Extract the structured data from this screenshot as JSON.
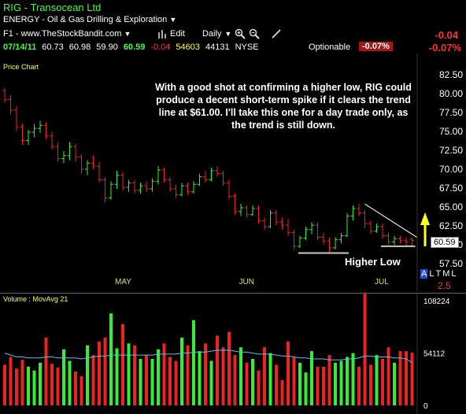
{
  "header": {
    "ticker": "RIG",
    "dash": "-",
    "company": "Transocean Ltd",
    "sector": "ENERGY - Oil & Gas Drilling & Exploration",
    "sector_dropdown": "▼",
    "source": "F1 - www.TheStockBandit.com",
    "edit_label": "Edit",
    "period_label": "Daily",
    "change_top": "-0.04",
    "change_pct_top": "-0.07%"
  },
  "quote": {
    "date": "07/14/11",
    "open": "60.73",
    "high": "60.98",
    "low": "59.90",
    "close": "60.59",
    "change": "-0.04",
    "volume": "54603",
    "avg_volume": "44131",
    "exchange": "NYSE",
    "optionable": "Optionable",
    "change_pct": "-0.07%"
  },
  "price_panel": {
    "label": "Price Chart",
    "annotation": "With a good shot at confirming a higher low, RIG could produce a decent short-term spike if it clears the trend line at $61.00.  I'll take this one for a day trade only, as the trend is still down.",
    "higher_low_label": "Higher Low",
    "last_price_tag": "60.59",
    "side_letters": [
      "A",
      "L",
      "T",
      "M",
      "L"
    ],
    "side_value": "2.5",
    "colors": {
      "up": "#33ee33",
      "down": "#ee2222",
      "arrow": "#ffff20",
      "trendline": "#ffffff",
      "support": "#c8c8c8"
    }
  },
  "volume_panel": {
    "label": "Volume : MovAvg 21",
    "ticks": [
      "108224",
      "54112",
      "0"
    ],
    "colors": {
      "up": "#33ee33",
      "down": "#ee2222",
      "ma": "#4fc6e6"
    }
  },
  "chart_data": [
    {
      "type": "candlestick",
      "title": "RIG - Transocean Ltd",
      "ylabel": "",
      "ylim": [
        56.5,
        83.5
      ],
      "ytick_labels": [
        "82.50",
        "80.00",
        "77.50",
        "75.00",
        "72.50",
        "70.00",
        "67.50",
        "65.00",
        "62.50",
        "60.00",
        "57.50"
      ],
      "xtick_labels": [
        "MAY",
        "JUN",
        "JUL"
      ],
      "x_positions_of_months": {
        "MAY": 20,
        "JUN": 41,
        "JUL": 64
      },
      "last_close": 60.59,
      "trendline_at": 61.0,
      "ohlc": [
        [
          80.4,
          80.8,
          78.8,
          79.2
        ],
        [
          79.2,
          79.8,
          77.2,
          77.8
        ],
        [
          77.8,
          78.4,
          75.0,
          75.6
        ],
        [
          75.6,
          76.0,
          73.2,
          73.8
        ],
        [
          73.8,
          75.2,
          73.2,
          74.9
        ],
        [
          74.9,
          76.0,
          74.2,
          75.4
        ],
        [
          75.4,
          76.4,
          74.8,
          75.8
        ],
        [
          75.8,
          76.2,
          74.0,
          74.4
        ],
        [
          74.4,
          75.0,
          72.6,
          73.0
        ],
        [
          73.0,
          73.6,
          71.0,
          71.4
        ],
        [
          71.4,
          72.4,
          70.8,
          71.8
        ],
        [
          71.8,
          73.6,
          71.2,
          73.0
        ],
        [
          73.0,
          73.4,
          71.0,
          71.6
        ],
        [
          71.6,
          72.0,
          69.4,
          70.0
        ],
        [
          70.0,
          71.2,
          69.2,
          70.8
        ],
        [
          70.8,
          71.8,
          70.0,
          70.4
        ],
        [
          70.4,
          71.0,
          68.2,
          68.6
        ],
        [
          68.6,
          69.0,
          65.6,
          66.2
        ],
        [
          66.2,
          68.4,
          66.0,
          68.0
        ],
        [
          68.0,
          69.8,
          67.4,
          69.2
        ],
        [
          69.2,
          69.6,
          67.2,
          67.6
        ],
        [
          67.6,
          68.6,
          67.0,
          68.2
        ],
        [
          68.2,
          68.6,
          66.8,
          67.2
        ],
        [
          67.2,
          68.2,
          66.8,
          67.8
        ],
        [
          67.8,
          68.4,
          67.0,
          67.4
        ],
        [
          67.4,
          68.8,
          67.0,
          68.4
        ],
        [
          68.4,
          70.4,
          68.0,
          69.9
        ],
        [
          69.9,
          70.2,
          68.2,
          68.6
        ],
        [
          68.6,
          69.0,
          67.0,
          67.4
        ],
        [
          67.4,
          68.0,
          66.2,
          66.6
        ],
        [
          66.6,
          68.2,
          66.4,
          67.8
        ],
        [
          67.8,
          68.2,
          66.6,
          67.0
        ],
        [
          67.0,
          68.4,
          66.8,
          68.0
        ],
        [
          68.0,
          69.4,
          67.8,
          69.0
        ],
        [
          69.0,
          69.8,
          68.2,
          68.6
        ],
        [
          68.6,
          70.2,
          68.4,
          69.8
        ],
        [
          69.8,
          70.4,
          69.0,
          69.4
        ],
        [
          69.4,
          69.8,
          67.8,
          68.2
        ],
        [
          68.2,
          68.6,
          66.0,
          66.4
        ],
        [
          66.4,
          66.8,
          64.0,
          64.4
        ],
        [
          64.4,
          65.4,
          63.8,
          64.9
        ],
        [
          64.9,
          65.2,
          63.6,
          64.0
        ],
        [
          64.0,
          65.2,
          63.8,
          64.8
        ],
        [
          64.8,
          65.2,
          62.8,
          63.2
        ],
        [
          63.2,
          63.6,
          62.0,
          62.4
        ],
        [
          62.4,
          64.6,
          62.2,
          64.2
        ],
        [
          64.2,
          64.6,
          62.6,
          63.0
        ],
        [
          63.0,
          63.6,
          62.0,
          62.6
        ],
        [
          62.6,
          63.4,
          61.2,
          61.6
        ],
        [
          61.6,
          62.0,
          59.4,
          59.8
        ],
        [
          59.8,
          61.2,
          59.6,
          60.9
        ],
        [
          60.9,
          62.4,
          60.6,
          62.0
        ],
        [
          62.0,
          63.0,
          61.4,
          62.6
        ],
        [
          62.6,
          63.0,
          60.6,
          61.0
        ],
        [
          61.0,
          61.6,
          60.0,
          60.5
        ],
        [
          60.5,
          61.0,
          59.0,
          59.6
        ],
        [
          59.6,
          61.0,
          59.4,
          60.7
        ],
        [
          60.7,
          61.6,
          60.2,
          61.2
        ],
        [
          61.2,
          64.2,
          61.0,
          63.8
        ],
        [
          63.8,
          65.2,
          63.2,
          64.8
        ],
        [
          64.8,
          65.4,
          63.8,
          64.2
        ],
        [
          64.2,
          64.6,
          62.2,
          62.8
        ],
        [
          62.8,
          63.2,
          61.4,
          61.8
        ],
        [
          61.8,
          62.8,
          61.6,
          62.4
        ],
        [
          62.4,
          62.8,
          60.8,
          61.2
        ],
        [
          61.2,
          61.6,
          60.0,
          60.4
        ],
        [
          60.4,
          61.2,
          60.0,
          60.8
        ],
        [
          60.8,
          61.2,
          60.2,
          60.6
        ],
        [
          60.6,
          61.0,
          59.9,
          60.4
        ],
        [
          60.73,
          60.98,
          59.9,
          60.59
        ]
      ]
    },
    {
      "type": "bar",
      "title": "Volume : MovAvg 21",
      "ylim": [
        0,
        125000
      ],
      "ytick_labels": [
        "108224",
        "54112",
        "0"
      ],
      "series": [
        {
          "name": "Volume",
          "values": [
            42000,
            50000,
            38000,
            47000,
            40000,
            36000,
            44000,
            70000,
            43000,
            39000,
            58000,
            46000,
            35000,
            30000,
            62000,
            52000,
            66000,
            70000,
            95000,
            59000,
            84000,
            64000,
            62000,
            48000,
            52000,
            48000,
            58000,
            64000,
            50000,
            46000,
            70000,
            62000,
            88000,
            56000,
            64000,
            46000,
            72000,
            60000,
            76000,
            52000,
            60000,
            44000,
            48000,
            36000,
            60000,
            54000,
            42000,
            26000,
            66000,
            50000,
            44000,
            34000,
            56000,
            40000,
            40000,
            52000,
            44000,
            46000,
            50000,
            54000,
            40000,
            118000,
            42000,
            52000,
            48000,
            60000,
            44000,
            56000,
            56000,
            54603
          ]
        },
        {
          "name": "MovAvg 21",
          "values": [
            54000,
            52000,
            50000,
            50000,
            49000,
            49000,
            49000,
            50000,
            50000,
            49000,
            49000,
            49000,
            49000,
            48000,
            49000,
            50000,
            51000,
            51000,
            52000,
            52000,
            52000,
            52000,
            52000,
            52000,
            52000,
            52000,
            53000,
            53000,
            53000,
            53000,
            54000,
            54000,
            55000,
            55000,
            55000,
            56000,
            57000,
            57000,
            57000,
            56000,
            55000,
            55000,
            54000,
            53000,
            53000,
            53000,
            52000,
            51000,
            51000,
            50000,
            49000,
            49000,
            48000,
            48000,
            48000,
            47000,
            47000,
            47000,
            48000,
            48000,
            49000,
            51000,
            51000,
            50000,
            50000,
            50000,
            49000,
            49000,
            48000,
            44131
          ]
        }
      ]
    }
  ]
}
